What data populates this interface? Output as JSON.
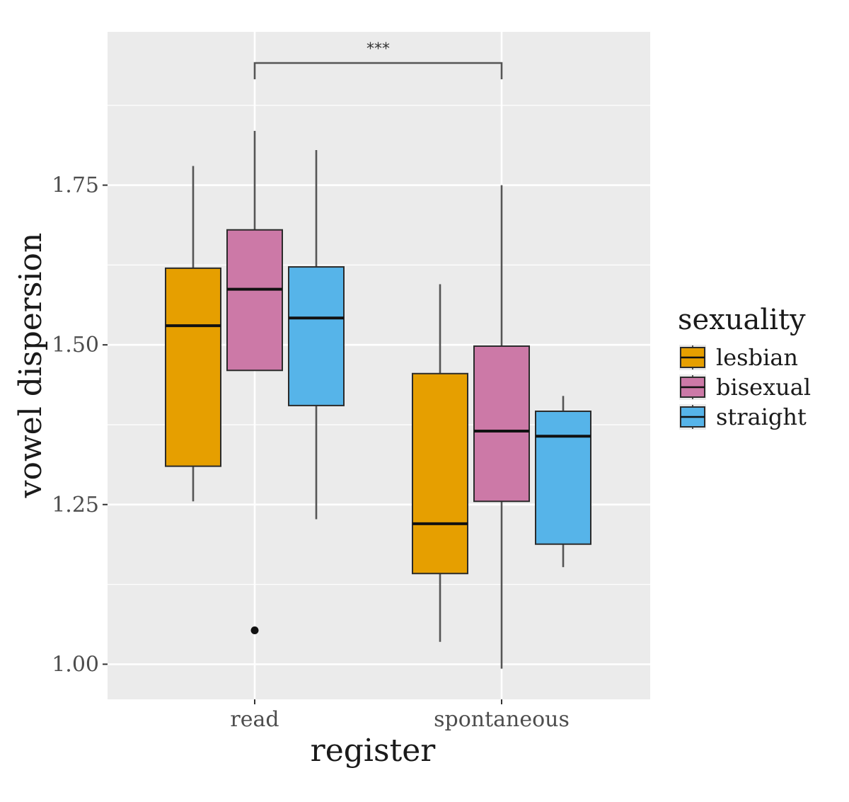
{
  "chart_data": {
    "type": "boxplot",
    "title": "",
    "xlabel": "register",
    "ylabel": "vowel dispersion",
    "categories": [
      "read",
      "spontaneous"
    ],
    "ylim": [
      0.945,
      1.99
    ],
    "yticks": [
      "1.00",
      "1.25",
      "1.50",
      "1.75"
    ],
    "grid": true,
    "legend": {
      "title": "sexuality",
      "position": "right",
      "entries": [
        {
          "name": "lesbian",
          "color": "#E69F00"
        },
        {
          "name": "bisexual",
          "color": "#CC79A7"
        },
        {
          "name": "straight",
          "color": "#56B4E9"
        }
      ]
    },
    "series": [
      {
        "name": "lesbian",
        "color": "#E69F00",
        "boxes": [
          {
            "category": "read",
            "min": 1.255,
            "q1": 1.31,
            "median": 1.53,
            "q3": 1.62,
            "max": 1.78,
            "outliers": []
          },
          {
            "category": "spontaneous",
            "min": 1.035,
            "q1": 1.142,
            "median": 1.22,
            "q3": 1.455,
            "max": 1.595,
            "outliers": []
          }
        ]
      },
      {
        "name": "bisexual",
        "color": "#CC79A7",
        "boxes": [
          {
            "category": "read",
            "min": 1.46,
            "q1": 1.46,
            "median": 1.587,
            "q3": 1.68,
            "max": 1.835,
            "outliers": [
              1.053
            ]
          },
          {
            "category": "spontaneous",
            "min": 0.993,
            "q1": 1.255,
            "median": 1.365,
            "q3": 1.498,
            "max": 1.75,
            "outliers": []
          }
        ]
      },
      {
        "name": "straight",
        "color": "#56B4E9",
        "boxes": [
          {
            "category": "read",
            "min": 1.227,
            "q1": 1.405,
            "median": 1.542,
            "q3": 1.622,
            "max": 1.805,
            "outliers": []
          },
          {
            "category": "spontaneous",
            "min": 1.152,
            "q1": 1.188,
            "median": 1.357,
            "q3": 1.396,
            "max": 1.42,
            "outliers": []
          }
        ]
      }
    ],
    "annotations": [
      {
        "type": "significance-bracket",
        "from": "read",
        "to": "spontaneous",
        "label": "***"
      }
    ]
  }
}
